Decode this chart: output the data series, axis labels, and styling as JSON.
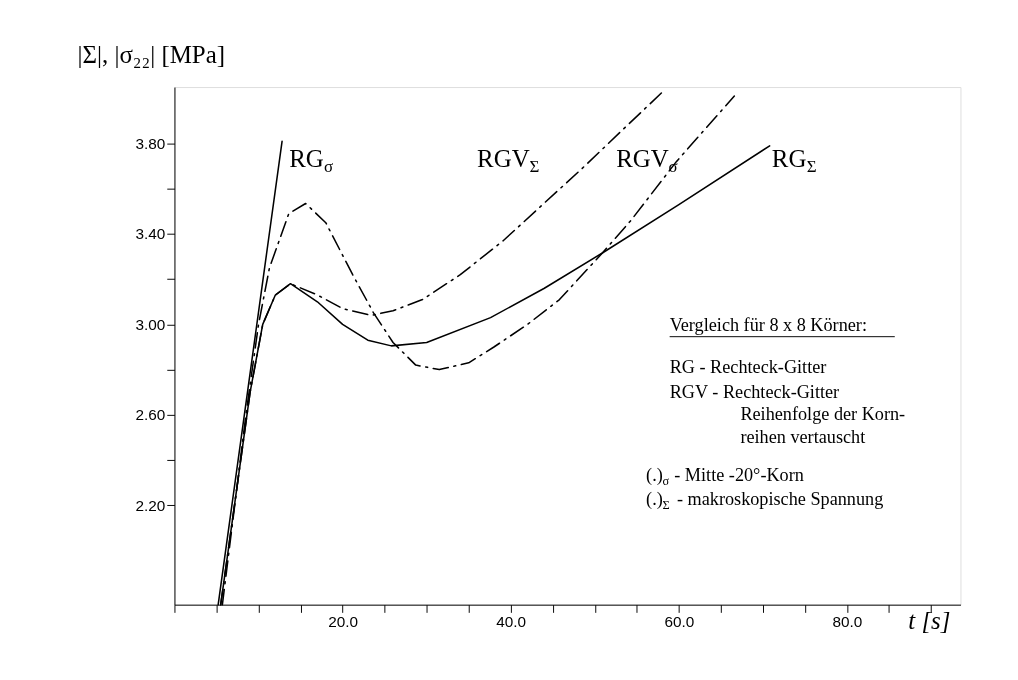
{
  "chart_data": {
    "type": "line",
    "title": "|Σ|, |σ₂₂| [MPa]",
    "xlabel": "t [s]",
    "xlim": [
      0,
      93.5
    ],
    "ylim": [
      1.76,
      4.05
    ],
    "xticks": [
      {
        "value": 0,
        "label": null
      },
      {
        "value": 5,
        "label": null
      },
      {
        "value": 10,
        "label": null
      },
      {
        "value": 15,
        "label": null
      },
      {
        "value": 20,
        "label": "20.0"
      },
      {
        "value": 25,
        "label": null
      },
      {
        "value": 30,
        "label": null
      },
      {
        "value": 35,
        "label": null
      },
      {
        "value": 40,
        "label": "40.0"
      },
      {
        "value": 45,
        "label": null
      },
      {
        "value": 50,
        "label": null
      },
      {
        "value": 55,
        "label": null
      },
      {
        "value": 60,
        "label": "60.0"
      },
      {
        "value": 65,
        "label": null
      },
      {
        "value": 70,
        "label": null
      },
      {
        "value": 75,
        "label": null
      },
      {
        "value": 80,
        "label": "80.0"
      },
      {
        "value": 85,
        "label": null
      },
      {
        "value": 90,
        "label": null
      }
    ],
    "yticks": [
      {
        "value": 2.2,
        "label": "2.20"
      },
      {
        "value": 2.4,
        "label": null
      },
      {
        "value": 2.6,
        "label": "2.60"
      },
      {
        "value": 2.8,
        "label": null
      },
      {
        "value": 3.0,
        "label": "3.00"
      },
      {
        "value": 3.2,
        "label": null
      },
      {
        "value": 3.4,
        "label": "3.40"
      },
      {
        "value": 3.6,
        "label": null
      },
      {
        "value": 3.8,
        "label": "3.80"
      }
    ],
    "grid": false,
    "series": [
      {
        "color": "#000000",
        "line_style": "solid",
        "x": [
          5.2,
          12.8
        ],
        "values": [
          1.76,
          3.81
        ]
      },
      {
        "color": "#000000",
        "line_style": "solid",
        "x": [
          5.5,
          9.0,
          10.5,
          12.0,
          13.8,
          17.0,
          20.0,
          23.0,
          25.8,
          30.0,
          37.6,
          44.0,
          50.9,
          60.0,
          70.8
        ],
        "values": [
          1.76,
          2.7,
          3.0,
          3.13,
          3.18,
          3.1,
          3.0,
          2.93,
          2.905,
          2.92,
          3.03,
          3.16,
          3.316,
          3.53,
          3.79
        ]
      },
      {
        "color": "#000000",
        "line_style": "dashed",
        "x": [
          5.5,
          9.0,
          10.5,
          12.0,
          13.8,
          17.0,
          20.0,
          23.4,
          26.0,
          29.5,
          34.0,
          39.1,
          43.5,
          48.5,
          53.0,
          58.1
        ],
        "values": [
          1.76,
          2.7,
          3.0,
          3.13,
          3.18,
          3.13,
          3.07,
          3.04,
          3.06,
          3.11,
          3.22,
          3.37,
          3.52,
          3.69,
          3.85,
          4.03
        ]
      },
      {
        "color": "#000000",
        "line_style": "dashed",
        "x": [
          5.7,
          8.5,
          10.0,
          11.3,
          13.6,
          15.6,
          18.0,
          21.2,
          23.7,
          26.0,
          28.7,
          31.5,
          35.0,
          38.0,
          42.0,
          45.8,
          50.9,
          54.3,
          59.7,
          66.6
        ],
        "values": [
          1.76,
          2.6,
          3.0,
          3.25,
          3.49,
          3.535,
          3.45,
          3.22,
          3.05,
          2.92,
          2.82,
          2.8,
          2.83,
          2.9,
          3.0,
          3.11,
          3.316,
          3.46,
          3.72,
          4.01
        ]
      }
    ],
    "annotations": [
      "RG$_{σ}$",
      "RGV$_{Σ}$",
      "RGV$_{σ}$",
      "RG$_{Σ}$",
      "Vergleich für 8 x 8 Körner:",
      "RG - Rechteck-Gitter",
      "RGV - Rechteck-Gitter",
      "Reihenfolge der Korn-",
      "reihen vertauscht",
      "(.)$_{σ}$ - Mitte -20°-Korn",
      "(.)$_{Σ}$ - makroskopische Spannung"
    ]
  }
}
